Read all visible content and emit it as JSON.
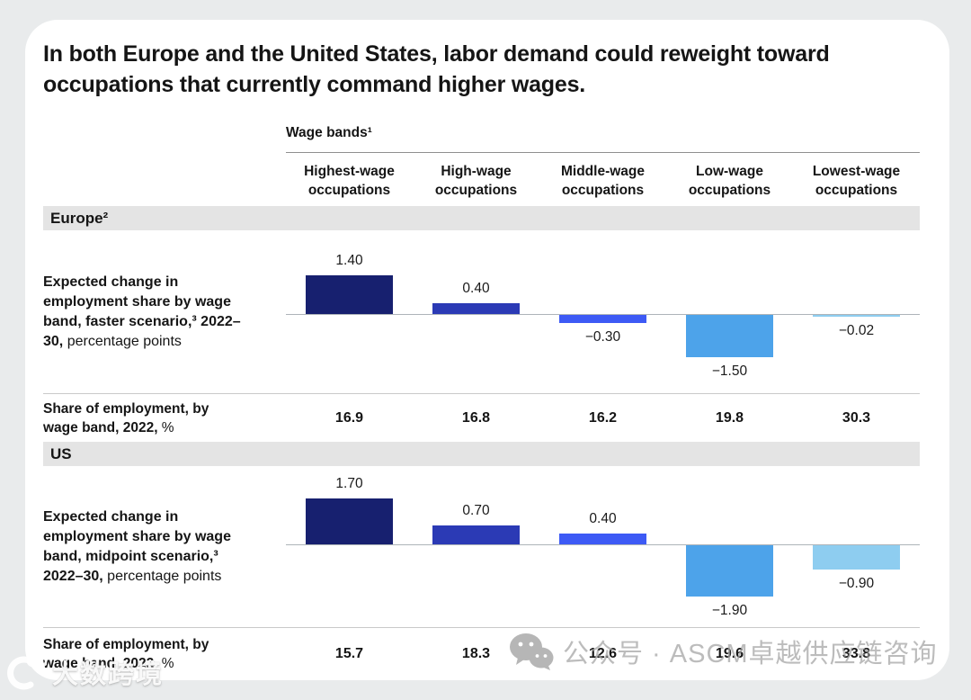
{
  "header": {
    "title": "In both Europe and the United States, labor demand could reweight toward occupations that currently command higher wages."
  },
  "columns_header": {
    "group_label": "Wage bands¹",
    "columns": [
      "Highest-wage occupations",
      "High-wage occupations",
      "Middle-wage occupations",
      "Low-wage occupations",
      "Lowest-wage occupations"
    ]
  },
  "sections": [
    {
      "name": "Europe²",
      "row_label_bold": "Expected change in employment share by wage band, faster scenario,³ 2022–30,",
      "row_label_regular": " percentage points",
      "share_label_bold": "Share of employment, by wage band, 2022,",
      "share_label_regular": " %",
      "share_values": [
        "16.9",
        "16.8",
        "16.2",
        "19.8",
        "30.3"
      ]
    },
    {
      "name": "US",
      "row_label_bold": "Expected change in employment share by wage band, midpoint scenario,³ 2022–30,",
      "row_label_regular": " percentage points",
      "share_label_bold": "Share of employment, by wage band, 2022,",
      "share_label_regular": " %",
      "share_values": [
        "15.7",
        "18.3",
        "12.6",
        "19.6",
        "33.8"
      ]
    }
  ],
  "chart_data": [
    {
      "type": "bar",
      "section": "Europe²",
      "title": "Expected change in employment share by wage band, faster scenario,³ 2022–30, percentage points",
      "categories": [
        "Highest-wage occupations",
        "High-wage occupations",
        "Middle-wage occupations",
        "Low-wage occupations",
        "Lowest-wage occupations"
      ],
      "values": [
        1.4,
        0.4,
        -0.3,
        -1.5,
        -0.02
      ],
      "value_labels": [
        "1.40",
        "0.40",
        "−0.30",
        "−1.50",
        "−0.02"
      ],
      "bar_colors": [
        "#17206f",
        "#2b3ab5",
        "#3d5af5",
        "#4da3ea",
        "#8ecdf0"
      ],
      "ylim": [
        -2.1,
        2.1
      ],
      "grid": false,
      "legend": "none",
      "share_of_employment_2022_pct": [
        16.9,
        16.8,
        16.2,
        19.8,
        30.3
      ]
    },
    {
      "type": "bar",
      "section": "US",
      "title": "Expected change in employment share by wage band, midpoint scenario,³ 2022–30, percentage points",
      "categories": [
        "Highest-wage occupations",
        "High-wage occupations",
        "Middle-wage occupations",
        "Low-wage occupations",
        "Lowest-wage occupations"
      ],
      "values": [
        1.7,
        0.7,
        0.4,
        -1.9,
        -0.9
      ],
      "value_labels": [
        "1.70",
        "0.70",
        "0.40",
        "−1.90",
        "−0.90"
      ],
      "bar_colors": [
        "#17206f",
        "#2b3ab5",
        "#3d5af5",
        "#4da3ea",
        "#8ecdf0"
      ],
      "ylim": [
        -2.1,
        2.1
      ],
      "grid": false,
      "legend": "none",
      "share_of_employment_2022_pct": [
        15.7,
        18.3,
        12.6,
        19.6,
        33.8
      ]
    }
  ],
  "watermarks": {
    "wechat_text": "公众号 · ASCM卓越供应链咨询",
    "brand_text": "大数跨境"
  },
  "colors": {
    "page_background": "#e9ebec",
    "card_background": "#ffffff",
    "section_band": "#e4e4e4",
    "axis_line": "#aeb4b9",
    "navy": "#17206f",
    "medium_blue": "#2b3ab5",
    "bright_blue": "#3d5af5",
    "sky_blue": "#4da3ea",
    "light_blue": "#8ecdf0"
  }
}
